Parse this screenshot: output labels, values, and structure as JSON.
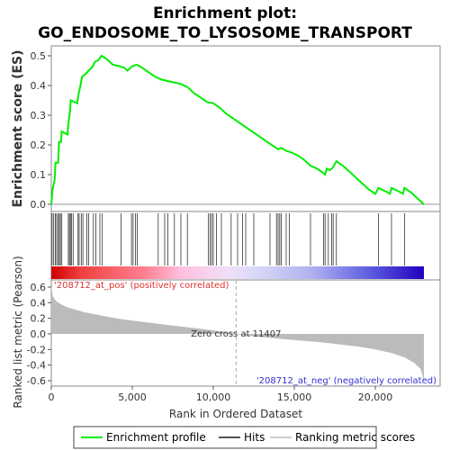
{
  "chart_data": {
    "type": "line",
    "title_line1": "Enrichment plot:",
    "title_line2": "GO_ENDOSOME_TO_LYSOSOME_TRANSPORT",
    "es_panel": {
      "ylabel": "Enrichment score (ES)",
      "ylim": [
        0,
        0.52
      ],
      "yticks": [
        "0.0",
        "0.1",
        "0.2",
        "0.3",
        "0.4",
        "0.5"
      ],
      "ytick_values": [
        0.0,
        0.1,
        0.2,
        0.3,
        0.4,
        0.5
      ],
      "line_color": "#00ee00",
      "series": [
        {
          "x": 0,
          "y": 0.0
        },
        {
          "x": 80,
          "y": 0.05
        },
        {
          "x": 200,
          "y": 0.08
        },
        {
          "x": 260,
          "y": 0.14
        },
        {
          "x": 420,
          "y": 0.14
        },
        {
          "x": 480,
          "y": 0.21
        },
        {
          "x": 600,
          "y": 0.21
        },
        {
          "x": 640,
          "y": 0.245
        },
        {
          "x": 1000,
          "y": 0.235
        },
        {
          "x": 1050,
          "y": 0.27
        },
        {
          "x": 1150,
          "y": 0.31
        },
        {
          "x": 1200,
          "y": 0.35
        },
        {
          "x": 1600,
          "y": 0.34
        },
        {
          "x": 1680,
          "y": 0.37
        },
        {
          "x": 1800,
          "y": 0.4
        },
        {
          "x": 1900,
          "y": 0.43
        },
        {
          "x": 2150,
          "y": 0.44
        },
        {
          "x": 2300,
          "y": 0.45
        },
        {
          "x": 2500,
          "y": 0.46
        },
        {
          "x": 2700,
          "y": 0.48
        },
        {
          "x": 2900,
          "y": 0.485
        },
        {
          "x": 3100,
          "y": 0.5
        },
        {
          "x": 3400,
          "y": 0.49
        },
        {
          "x": 3800,
          "y": 0.47
        },
        {
          "x": 4200,
          "y": 0.465
        },
        {
          "x": 4500,
          "y": 0.46
        },
        {
          "x": 4700,
          "y": 0.45
        },
        {
          "x": 5000,
          "y": 0.465
        },
        {
          "x": 5300,
          "y": 0.47
        },
        {
          "x": 5600,
          "y": 0.46
        },
        {
          "x": 6000,
          "y": 0.445
        },
        {
          "x": 6400,
          "y": 0.43
        },
        {
          "x": 6800,
          "y": 0.42
        },
        {
          "x": 7200,
          "y": 0.415
        },
        {
          "x": 7600,
          "y": 0.41
        },
        {
          "x": 8000,
          "y": 0.405
        },
        {
          "x": 8400,
          "y": 0.395
        },
        {
          "x": 8800,
          "y": 0.375
        },
        {
          "x": 9200,
          "y": 0.36
        },
        {
          "x": 9600,
          "y": 0.345
        },
        {
          "x": 10000,
          "y": 0.34
        },
        {
          "x": 10400,
          "y": 0.325
        },
        {
          "x": 10800,
          "y": 0.305
        },
        {
          "x": 11200,
          "y": 0.29
        },
        {
          "x": 11600,
          "y": 0.275
        },
        {
          "x": 12000,
          "y": 0.26
        },
        {
          "x": 12400,
          "y": 0.245
        },
        {
          "x": 12800,
          "y": 0.23
        },
        {
          "x": 13200,
          "y": 0.215
        },
        {
          "x": 13600,
          "y": 0.2
        },
        {
          "x": 14000,
          "y": 0.185
        },
        {
          "x": 14200,
          "y": 0.19
        },
        {
          "x": 14500,
          "y": 0.18
        },
        {
          "x": 14800,
          "y": 0.175
        },
        {
          "x": 15200,
          "y": 0.165
        },
        {
          "x": 15600,
          "y": 0.15
        },
        {
          "x": 16000,
          "y": 0.13
        },
        {
          "x": 16400,
          "y": 0.12
        },
        {
          "x": 16800,
          "y": 0.105
        },
        {
          "x": 16900,
          "y": 0.1
        },
        {
          "x": 17000,
          "y": 0.12
        },
        {
          "x": 17200,
          "y": 0.115
        },
        {
          "x": 17400,
          "y": 0.125
        },
        {
          "x": 17600,
          "y": 0.145
        },
        {
          "x": 18000,
          "y": 0.13
        },
        {
          "x": 18400,
          "y": 0.11
        },
        {
          "x": 18800,
          "y": 0.09
        },
        {
          "x": 19200,
          "y": 0.07
        },
        {
          "x": 19600,
          "y": 0.05
        },
        {
          "x": 20000,
          "y": 0.035
        },
        {
          "x": 20200,
          "y": 0.055
        },
        {
          "x": 20600,
          "y": 0.045
        },
        {
          "x": 20900,
          "y": 0.035
        },
        {
          "x": 21000,
          "y": 0.055
        },
        {
          "x": 21400,
          "y": 0.045
        },
        {
          "x": 21700,
          "y": 0.035
        },
        {
          "x": 21800,
          "y": 0.055
        },
        {
          "x": 22200,
          "y": 0.04
        },
        {
          "x": 22600,
          "y": 0.02
        },
        {
          "x": 23000,
          "y": 0.0
        }
      ]
    },
    "hits": [
      50,
      150,
      250,
      330,
      420,
      500,
      560,
      650,
      1050,
      1120,
      1180,
      1250,
      1350,
      1650,
      1720,
      1850,
      1950,
      2200,
      2300,
      2600,
      2750,
      3000,
      3150,
      4300,
      4950,
      5050,
      5200,
      5300,
      6600,
      7000,
      7200,
      7600,
      8000,
      8400,
      9700,
      9800,
      9900,
      10000,
      10200,
      10500,
      11100,
      11500,
      11800,
      12000,
      12500,
      13500,
      13900,
      14000,
      14100,
      14200,
      14500,
      14700,
      16000,
      16800,
      16900,
      17100,
      17300,
      17400,
      17600,
      20200,
      21000,
      21800
    ],
    "metric_panel": {
      "ylabel": "Ranked list metric (Pearson)",
      "xlabel": "Rank in Ordered Dataset",
      "xlim": [
        0,
        23000
      ],
      "ylim": [
        -0.65,
        0.68
      ],
      "yticks": [
        "0.6",
        "0.4",
        "0.2",
        "0.0",
        "-0.2",
        "-0.4",
        "-0.6"
      ],
      "ytick_values": [
        0.6,
        0.4,
        0.2,
        0.0,
        -0.2,
        -0.4,
        -0.6
      ],
      "xticks": [
        "0",
        "5,000",
        "10,000",
        "15,000",
        "20,000"
      ],
      "xtick_values": [
        0,
        5000,
        10000,
        15000,
        20000
      ],
      "curve": [
        {
          "x": 0,
          "y": 0.62
        },
        {
          "x": 100,
          "y": 0.48
        },
        {
          "x": 300,
          "y": 0.42
        },
        {
          "x": 600,
          "y": 0.38
        },
        {
          "x": 1000,
          "y": 0.34
        },
        {
          "x": 1500,
          "y": 0.31
        },
        {
          "x": 2000,
          "y": 0.28
        },
        {
          "x": 3000,
          "y": 0.24
        },
        {
          "x": 4000,
          "y": 0.2
        },
        {
          "x": 5000,
          "y": 0.17
        },
        {
          "x": 6000,
          "y": 0.145
        },
        {
          "x": 7000,
          "y": 0.12
        },
        {
          "x": 8000,
          "y": 0.095
        },
        {
          "x": 9000,
          "y": 0.07
        },
        {
          "x": 10000,
          "y": 0.045
        },
        {
          "x": 11000,
          "y": 0.015
        },
        {
          "x": 11407,
          "y": 0.0
        },
        {
          "x": 12000,
          "y": -0.02
        },
        {
          "x": 13000,
          "y": -0.04
        },
        {
          "x": 14000,
          "y": -0.06
        },
        {
          "x": 15000,
          "y": -0.08
        },
        {
          "x": 16000,
          "y": -0.095
        },
        {
          "x": 17000,
          "y": -0.115
        },
        {
          "x": 18000,
          "y": -0.14
        },
        {
          "x": 19000,
          "y": -0.165
        },
        {
          "x": 20000,
          "y": -0.2
        },
        {
          "x": 21000,
          "y": -0.245
        },
        {
          "x": 21800,
          "y": -0.3
        },
        {
          "x": 22400,
          "y": -0.37
        },
        {
          "x": 22800,
          "y": -0.45
        },
        {
          "x": 23000,
          "y": -0.6
        }
      ],
      "zero_cross_label": "Zero cross at 11407",
      "zero_cross_x": 11407,
      "pos_label": "'208712_at_pos' (positively correlated)",
      "neg_label": "'208712_at_neg' (negatively correlated)",
      "pos_color": "#e03030",
      "neg_color": "#3030d0"
    },
    "legend": [
      {
        "label": "Enrichment profile",
        "color": "#00ee00"
      },
      {
        "label": "Hits",
        "color": "#555555"
      },
      {
        "label": "Ranking metric scores",
        "color": "#cccccc"
      }
    ],
    "grid": false
  }
}
